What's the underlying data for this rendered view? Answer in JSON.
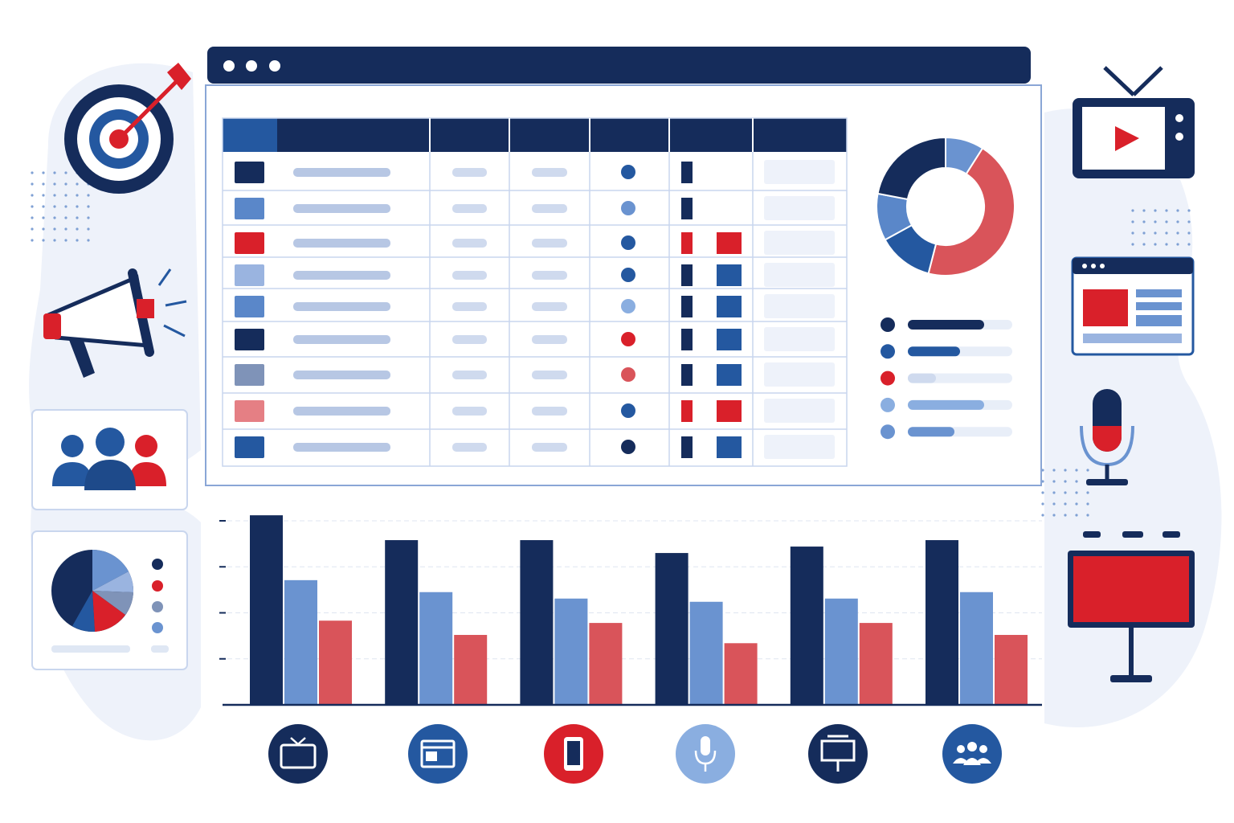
{
  "chart_data": [
    {
      "type": "bar",
      "categories": [
        null,
        null,
        null,
        null,
        null,
        null
      ],
      "series": [
        {
          "color": "#152c5b",
          "values": [
            4.12,
            3.58,
            3.58,
            3.3,
            3.44,
            3.58
          ]
        },
        {
          "color": "#6a93d0",
          "values": [
            2.71,
            2.45,
            2.31,
            2.24,
            2.31,
            2.45
          ]
        },
        {
          "color": "#d9545a",
          "values": [
            1.83,
            1.52,
            1.78,
            1.34,
            1.78,
            1.52
          ]
        }
      ],
      "ylim": [
        0,
        4.2
      ],
      "yticks": [
        1,
        2,
        3,
        4
      ],
      "grid": true
    },
    {
      "type": "pie",
      "donut": true,
      "values": [
        9,
        45,
        13,
        11,
        22
      ],
      "colors": [
        "#6a93d0",
        "#d9545a",
        "#2458a0",
        "#5a87c9",
        "#152c5b"
      ]
    }
  ]
}
